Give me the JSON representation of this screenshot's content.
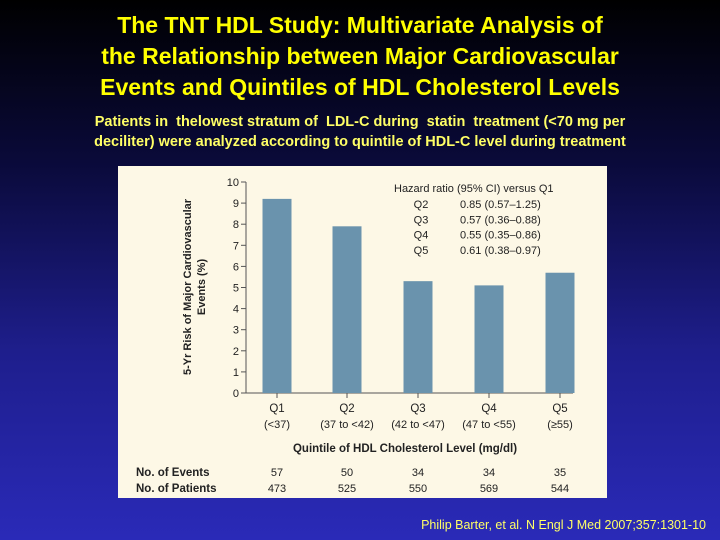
{
  "slide": {
    "title_lines": [
      "The TNT HDL Study: Multivariate Analysis of",
      "the Relationship between Major Cardiovascular",
      "Events and Quintiles of HDL Cholesterol Levels"
    ],
    "subtitle_lines": [
      "Patients in  thelowest stratum of  LDL-C during  statin  treatment (<70 mg per",
      "deciliter) were analyzed according to quintile of HDL-C level during treatment"
    ],
    "citation": "Philip Barter, et al. N Engl J Med 2007;357:1301-10"
  },
  "chart_data": {
    "type": "bar",
    "categories": [
      "Q1",
      "Q2",
      "Q3",
      "Q4",
      "Q5"
    ],
    "category_sublabels": [
      "(<37)",
      "(37 to <42)",
      "(42 to <47)",
      "(47 to <55)",
      "(≥55)"
    ],
    "values": [
      9.2,
      7.9,
      5.3,
      5.1,
      5.7
    ],
    "xlabel": "Quintile of HDL Cholesterol Level (mg/dl)",
    "ylabel_lines": [
      "5-Yr Risk of Major Cardiovascular",
      "Events (%)"
    ],
    "ylim": [
      0,
      10
    ],
    "yticks": [
      "0",
      "1",
      "2",
      "3",
      "4",
      "5",
      "6",
      "7",
      "8",
      "9",
      "10"
    ],
    "grid": false,
    "bar_color": "#6a93ad",
    "hazard_table": {
      "header": "Hazard ratio (95% CI) versus Q1",
      "rows": [
        {
          "label": "Q2",
          "value": "0.85 (0.57–1.25)"
        },
        {
          "label": "Q3",
          "value": "0.57 (0.36–0.88)"
        },
        {
          "label": "Q4",
          "value": "0.55 (0.35–0.86)"
        },
        {
          "label": "Q5",
          "value": "0.61 (0.38–0.97)"
        }
      ]
    },
    "events_table": {
      "rows": [
        {
          "label": "No. of Events",
          "values": [
            "57",
            "50",
            "34",
            "34",
            "35"
          ]
        },
        {
          "label": "No. of Patients",
          "values": [
            "473",
            "525",
            "550",
            "569",
            "544"
          ]
        }
      ]
    }
  }
}
